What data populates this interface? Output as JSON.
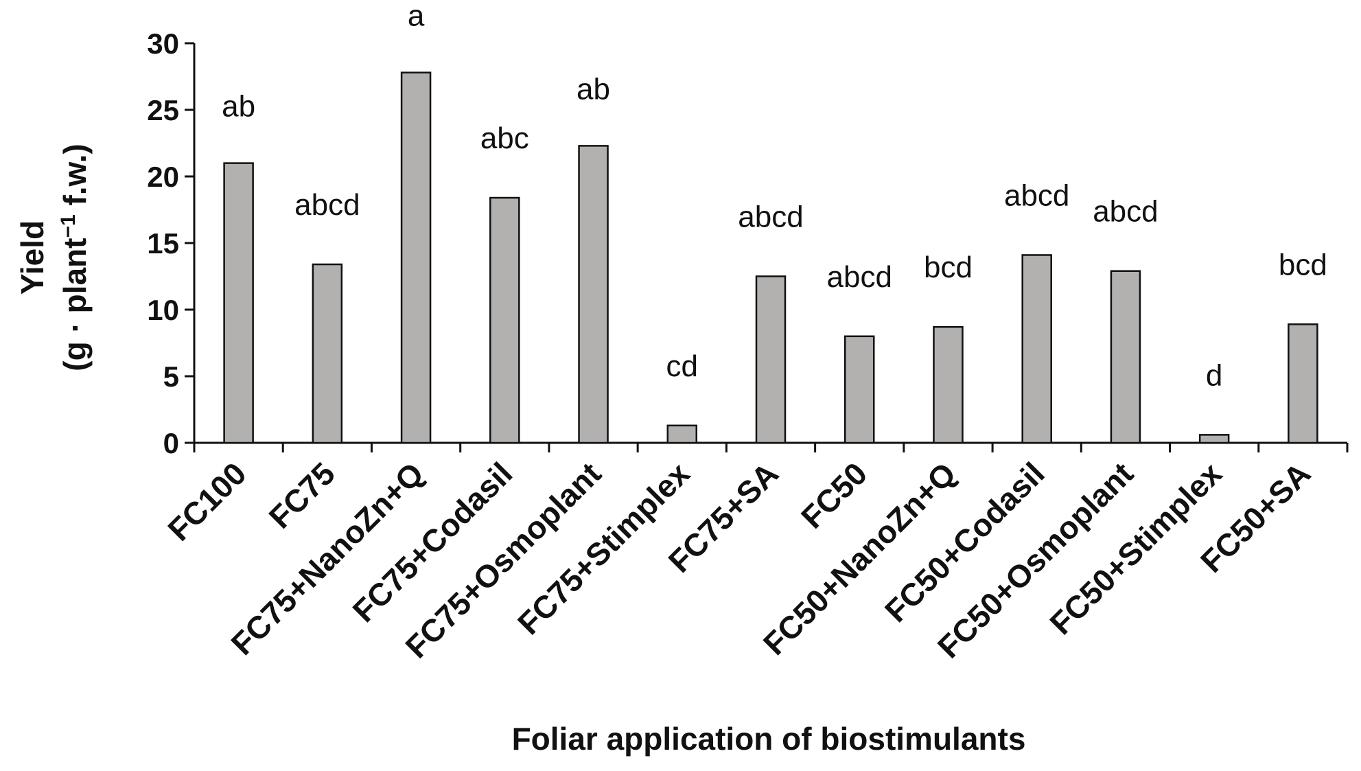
{
  "chart_data": {
    "type": "bar",
    "xlabel": "Foliar application of biostimulants",
    "ylabel_line1": "Yield",
    "ylabel_line2_pre": "(g · plant",
    "ylabel_line2_sup": "−1",
    "ylabel_line2_post": " f.w.)",
    "ylim": [
      0,
      30
    ],
    "yticks": [
      "0",
      "5",
      "10",
      "15",
      "20",
      "25",
      "30"
    ],
    "grid": false,
    "colors": {
      "bar_fill": "#b3b0b0",
      "bar_stroke": "#111111"
    },
    "categories": [
      "FC100",
      "FC75",
      "FC75+NanoZn+Q",
      "FC75+Codasil",
      "FC75+Osmoplant",
      "FC75+Stimplex",
      "FC75+SA",
      "FC50",
      "FC50+NanoZn+Q",
      "FC50+Codasil",
      "FC50+Osmoplant",
      "FC50+Stimplex",
      "FC50+SA"
    ],
    "values": [
      21.0,
      13.4,
      27.8,
      18.4,
      22.3,
      1.3,
      12.5,
      8.0,
      8.7,
      14.1,
      12.9,
      0.6,
      8.9
    ],
    "letters": [
      "ab",
      "abcd",
      "a",
      "abc",
      "ab",
      "cd",
      "abcd",
      "abcd",
      "bcd",
      "abcd",
      "abcd",
      "d",
      "bcd"
    ]
  }
}
